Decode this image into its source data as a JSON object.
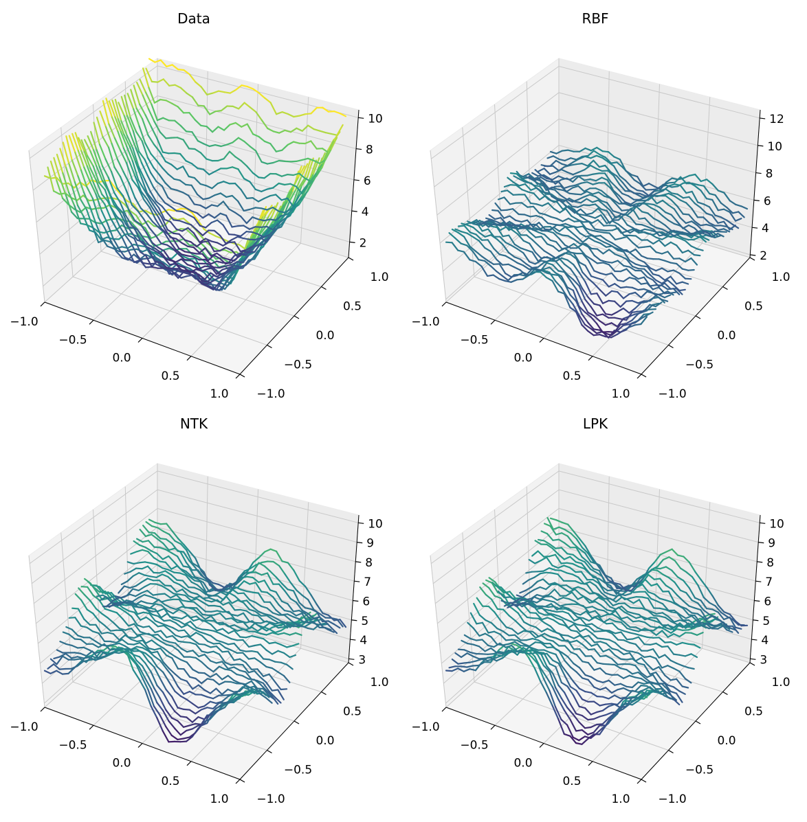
{
  "chart_data": [
    {
      "type": "surface3d",
      "title": "Data",
      "x_ticks": [
        "−1.0",
        "−0.5",
        "0.0",
        "0.5",
        "1.0"
      ],
      "y_ticks": [
        "−1.0",
        "−0.5",
        "0.0",
        "0.5",
        "1.0"
      ],
      "z_ticks": [
        "2",
        "4",
        "6",
        "8",
        "10"
      ],
      "xlim": [
        -1,
        1
      ],
      "ylim": [
        -1,
        1
      ],
      "zlim": [
        1,
        10.5
      ],
      "colormap": "viridis",
      "grid": true
    },
    {
      "type": "surface3d",
      "title": "RBF",
      "x_ticks": [
        "−1.0",
        "−0.5",
        "0.0",
        "0.5",
        "1.0"
      ],
      "y_ticks": [
        "−1.0",
        "−0.5",
        "0.0",
        "0.5",
        "1.0"
      ],
      "z_ticks": [
        "2",
        "4",
        "6",
        "8",
        "10",
        "12"
      ],
      "xlim": [
        -1,
        1
      ],
      "ylim": [
        -1,
        1
      ],
      "zlim": [
        1.8,
        12.6
      ],
      "colormap": "viridis",
      "grid": true
    },
    {
      "type": "surface3d",
      "title": "NTK",
      "x_ticks": [
        "−1.0",
        "−0.5",
        "0.0",
        "0.5",
        "1.0"
      ],
      "y_ticks": [
        "−1.0",
        "−0.5",
        "0.0",
        "0.5",
        "1.0"
      ],
      "z_ticks": [
        "3",
        "4",
        "5",
        "6",
        "7",
        "8",
        "9",
        "10"
      ],
      "xlim": [
        -1,
        1
      ],
      "ylim": [
        -1,
        1
      ],
      "zlim": [
        2.8,
        10.4
      ],
      "colormap": "viridis",
      "grid": true
    },
    {
      "type": "surface3d",
      "title": "LPK",
      "x_ticks": [
        "−1.0",
        "−0.5",
        "0.0",
        "0.5",
        "1.0"
      ],
      "y_ticks": [
        "−1.0",
        "−0.5",
        "0.0",
        "0.5",
        "1.0"
      ],
      "z_ticks": [
        "3",
        "4",
        "5",
        "6",
        "7",
        "8",
        "9",
        "10"
      ],
      "xlim": [
        -1,
        1
      ],
      "ylim": [
        -1,
        1
      ],
      "zlim": [
        2.8,
        10.4
      ],
      "colormap": "viridis",
      "grid": true
    }
  ]
}
